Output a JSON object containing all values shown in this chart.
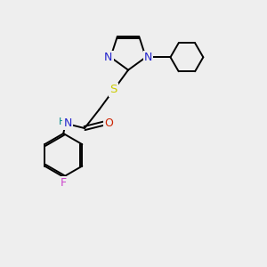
{
  "bg_color": "#eeeeee",
  "line_color": "#000000",
  "N_color": "#2222cc",
  "O_color": "#cc2200",
  "S_color": "#cccc00",
  "F_color": "#cc44cc",
  "H_color": "#008888",
  "figsize": [
    3.0,
    3.0
  ],
  "dpi": 100,
  "xlim": [
    0,
    10
  ],
  "ylim": [
    0,
    10
  ],
  "lw": 1.4
}
